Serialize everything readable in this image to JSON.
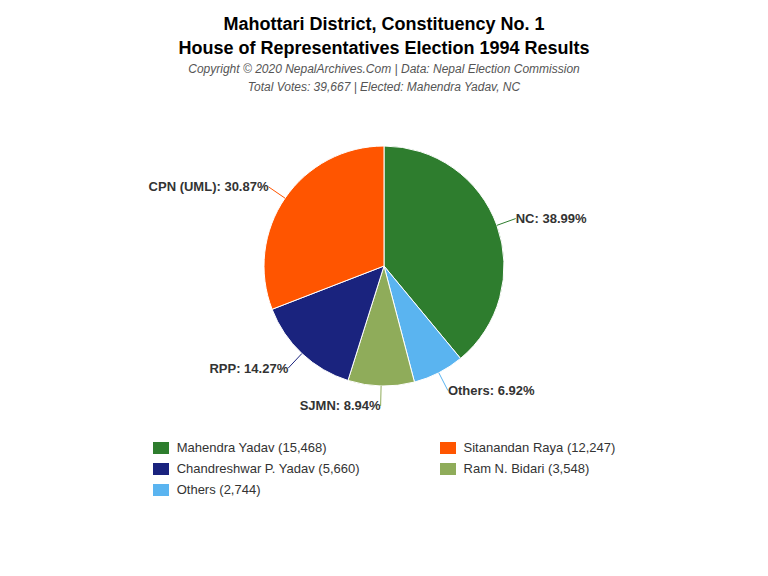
{
  "chart_data": {
    "type": "pie",
    "title": "Mahottari District, Constituency No. 1",
    "subtitle": "House of Representatives Election 1994 Results",
    "annotations": [
      "Copyright © 2020 NepalArchives.Com | Data: Nepal Election Commission",
      "Total Votes: 39,667 | Elected: Mahendra Yadav, NC"
    ],
    "categories": [
      "NC",
      "Others",
      "SJMN",
      "RPP",
      "CPN (UML)"
    ],
    "values": [
      38.99,
      6.92,
      8.94,
      14.27,
      30.87
    ],
    "value_labels": [
      "NC: 38.99%",
      "Others: 6.92%",
      "SJMN: 8.94%",
      "RPP: 14.27%",
      "CPN (UML): 30.87%"
    ],
    "colors": [
      "#2e7d2e",
      "#5ab4f0",
      "#8fac5a",
      "#1a237e",
      "#ff5500"
    ],
    "data_labels": true,
    "legend": "bottom",
    "legend_entries": [
      {
        "text": "Mahendra Yadav (15,468)",
        "color": "#2e7d2e"
      },
      {
        "text": "Chandreshwar P. Yadav (5,660)",
        "color": "#1a237e"
      },
      {
        "text": "Others (2,744)",
        "color": "#5ab4f0"
      },
      {
        "text": "Sitanandan Raya (12,247)",
        "color": "#ff5500"
      },
      {
        "text": "Ram N. Bidari (3,548)",
        "color": "#8fac5a"
      }
    ]
  }
}
